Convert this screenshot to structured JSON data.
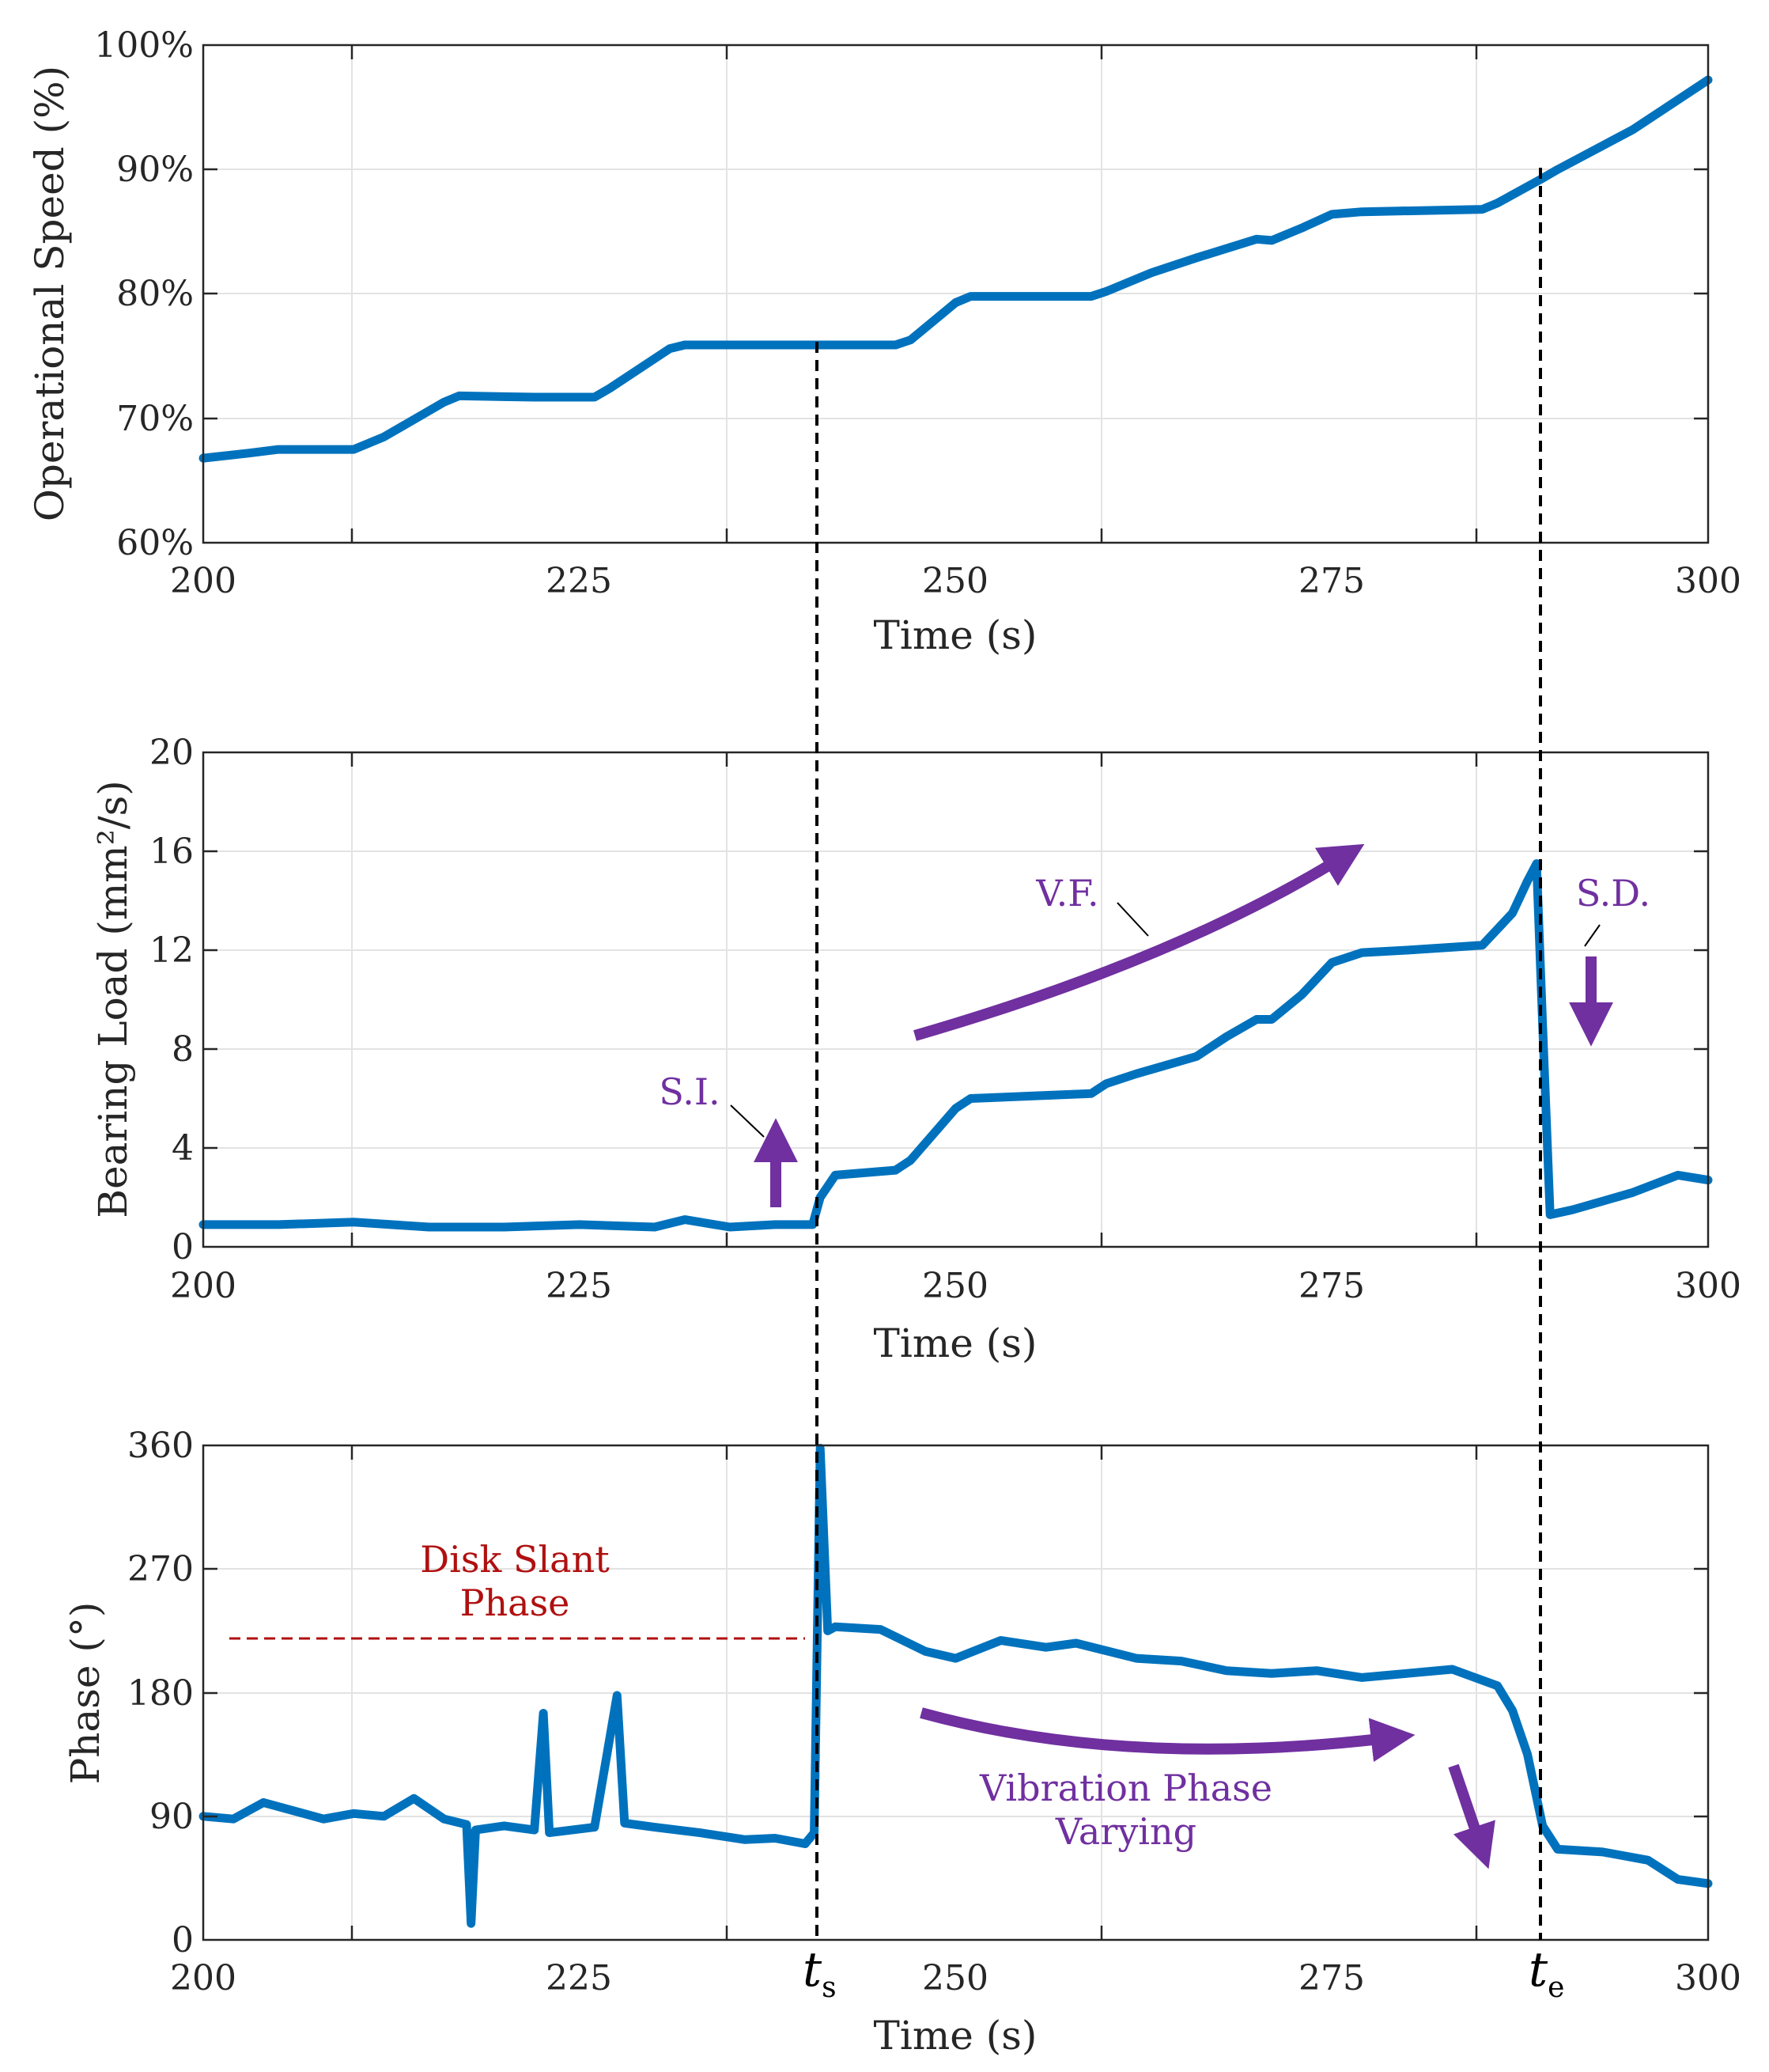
{
  "chart_data": [
    {
      "type": "line",
      "ylabel": "Operational Speed (%)",
      "xlabel": "Time (s)",
      "xlim": [
        200,
        300
      ],
      "ylim": [
        60,
        100
      ],
      "xticks": [
        "200",
        "225",
        "250",
        "275",
        "300"
      ],
      "yticks": [
        "60%",
        "70%",
        "80%",
        "90%",
        "100%"
      ],
      "grid": true,
      "color": "#0072bd",
      "x": [
        200,
        203,
        205,
        210,
        212,
        216,
        217,
        222,
        226,
        227,
        231,
        232,
        246,
        247,
        250,
        251,
        259,
        260,
        263,
        266,
        270,
        271,
        273,
        275,
        277,
        285,
        286,
        289,
        290,
        295,
        300
      ],
      "y": [
        66.8,
        67.2,
        67.5,
        67.5,
        68.5,
        71.3,
        71.8,
        71.7,
        71.7,
        72.4,
        75.6,
        75.9,
        75.9,
        76.3,
        79.3,
        79.8,
        79.8,
        80.2,
        81.7,
        82.9,
        84.4,
        84.3,
        85.3,
        86.4,
        86.6,
        86.8,
        87.3,
        89.3,
        90.0,
        93.2,
        97.2
      ]
    },
    {
      "type": "line",
      "ylabel": "Bearing Load (mm²/s)",
      "xlabel": "Time (s)",
      "xlim": [
        200,
        300
      ],
      "ylim": [
        0,
        20
      ],
      "xticks": [
        "200",
        "225",
        "250",
        "275",
        "300"
      ],
      "yticks": [
        "0",
        "4",
        "8",
        "12",
        "16",
        "20"
      ],
      "grid": true,
      "color": "#0072bd",
      "x": [
        200,
        205,
        210,
        215,
        220,
        225,
        230,
        232,
        235,
        238,
        240.5,
        241,
        242,
        246,
        247,
        250,
        251,
        255,
        259,
        260,
        262,
        266,
        268,
        270,
        271,
        273,
        275,
        277,
        280,
        285,
        287,
        288,
        288.6,
        289,
        289.5,
        291,
        295,
        298,
        300
      ],
      "y": [
        0.9,
        0.9,
        1.0,
        0.8,
        0.8,
        0.9,
        0.8,
        1.1,
        0.8,
        0.9,
        0.9,
        2.0,
        2.9,
        3.1,
        3.5,
        5.6,
        6.0,
        6.1,
        6.2,
        6.6,
        7.0,
        7.7,
        8.5,
        9.2,
        9.2,
        10.2,
        11.5,
        11.9,
        12.0,
        12.2,
        13.5,
        14.8,
        15.5,
        9.0,
        1.3,
        1.5,
        2.2,
        2.9,
        2.7
      ],
      "annotations": {
        "si": "S.I.",
        "vf": "V.F.",
        "sd": "S.D."
      }
    },
    {
      "type": "line",
      "ylabel": "Phase (°)",
      "xlabel": "Time (s)",
      "xlim": [
        200,
        300
      ],
      "ylim": [
        0,
        360
      ],
      "xticks": [
        "200",
        "225",
        "250",
        "275",
        "300"
      ],
      "yticks": [
        "0",
        "90",
        "180",
        "270",
        "360"
      ],
      "grid": true,
      "color": "#0072bd",
      "x": [
        200,
        202,
        204,
        206,
        208,
        210,
        212,
        214,
        216,
        217.5,
        217.8,
        218.1,
        220,
        222,
        222.6,
        223,
        226,
        227.5,
        228,
        230,
        233,
        236,
        238,
        240,
        240.6,
        241,
        241.5,
        242,
        245,
        248,
        250,
        253,
        256,
        258,
        262,
        265,
        268,
        271,
        274,
        277,
        280,
        283,
        286,
        287,
        288,
        289,
        290,
        293,
        296,
        298,
        300
      ],
      "y": [
        90,
        88,
        100,
        94,
        88,
        92,
        90,
        103,
        88,
        84,
        12,
        80,
        83,
        80,
        165,
        78,
        82,
        178,
        85,
        82,
        78,
        73,
        74,
        70,
        78,
        358,
        225,
        228,
        226,
        210,
        205,
        218,
        213,
        216,
        205,
        203,
        196,
        194,
        196,
        191,
        194,
        197,
        185,
        167,
        135,
        83,
        66,
        64,
        58,
        44,
        41
      ],
      "annotations": {
        "disk_slant_1": "Disk Slant",
        "disk_slant_2": "Phase",
        "vibration_1": "Vibration Phase",
        "vibration_2": "Varying",
        "ts_main": "t",
        "ts_sub": "s",
        "te_main": "t",
        "te_sub": "e"
      }
    }
  ]
}
